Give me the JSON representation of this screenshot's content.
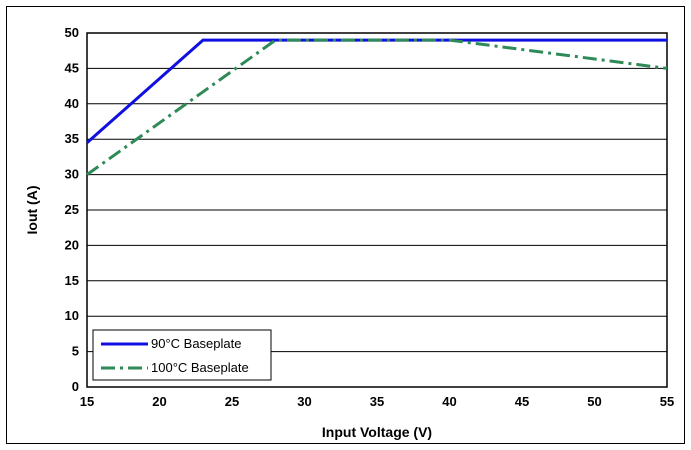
{
  "chart_data": {
    "type": "line",
    "xlabel": "Input Voltage (V)",
    "ylabel": "Iout (A)",
    "xlim": [
      15,
      55
    ],
    "ylim": [
      0,
      50
    ],
    "xticks": [
      15,
      20,
      25,
      30,
      35,
      40,
      45,
      50,
      55
    ],
    "yticks": [
      0,
      5,
      10,
      15,
      20,
      25,
      30,
      35,
      40,
      45,
      50
    ],
    "grid": "horizontal",
    "legend_position": "bottom-left",
    "series": [
      {
        "name": "90°C Baseplate",
        "color": "#1010e0",
        "style": "solid",
        "x": [
          15,
          23,
          55
        ],
        "y": [
          34.5,
          49,
          49
        ]
      },
      {
        "name": "100°C Baseplate",
        "color": "#2e8b57",
        "style": "dash-dot",
        "x": [
          15,
          28,
          40,
          55
        ],
        "y": [
          30,
          49,
          49,
          45
        ]
      }
    ]
  }
}
